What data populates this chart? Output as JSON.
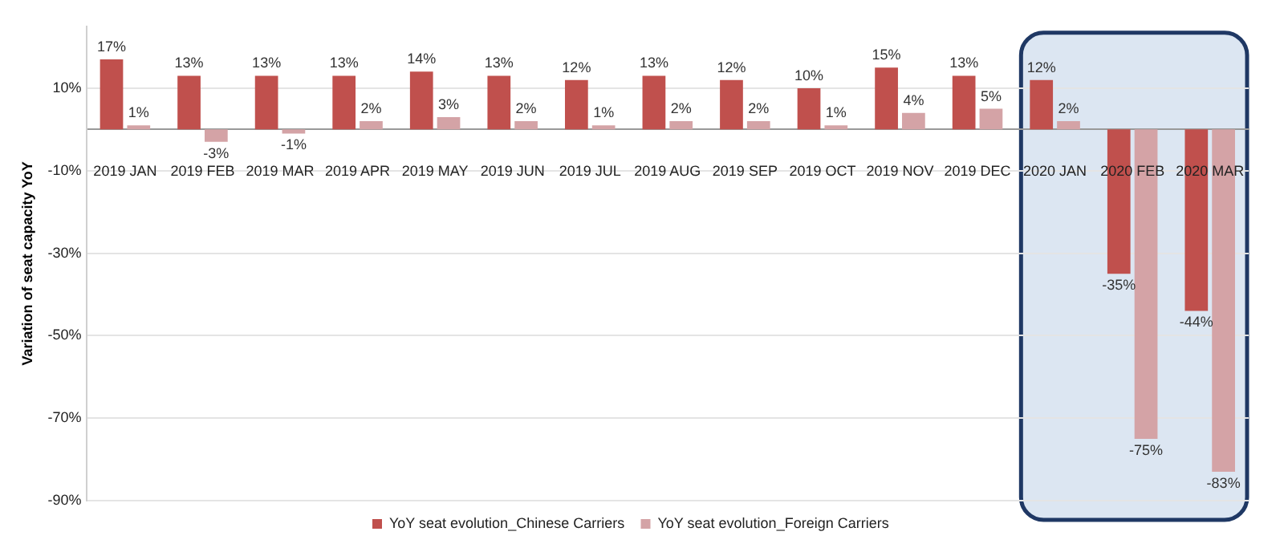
{
  "chart_data": {
    "type": "bar",
    "ylabel": "Variation of seat capacity YoY",
    "categories": [
      "2019 JAN",
      "2019 FEB",
      "2019 MAR",
      "2019 APR",
      "2019 MAY",
      "2019 JUN",
      "2019 JUL",
      "2019 AUG",
      "2019 SEP",
      "2019 OCT",
      "2019 NOV",
      "2019 DEC",
      "2020 JAN",
      "2020 FEB",
      "2020 MAR"
    ],
    "series": [
      {
        "name": "YoY seat evolution_Chinese Carriers",
        "color": "#c0504d",
        "values": [
          17,
          13,
          13,
          13,
          14,
          13,
          12,
          13,
          12,
          10,
          15,
          13,
          12,
          -35,
          -44
        ],
        "value_labels": [
          "17%",
          "13%",
          "13%",
          "13%",
          "14%",
          "13%",
          "12%",
          "13%",
          "12%",
          "10%",
          "15%",
          "13%",
          "12%",
          "-35%",
          "-44%"
        ]
      },
      {
        "name": "YoY seat evolution_Foreign Carriers",
        "color": "#d4a3a6",
        "values": [
          1,
          -3,
          -1,
          2,
          3,
          2,
          1,
          2,
          2,
          1,
          4,
          5,
          2,
          -75,
          -83
        ],
        "value_labels": [
          "1%",
          "-3%",
          "-1%",
          "2%",
          "3%",
          "2%",
          "1%",
          "2%",
          "2%",
          "1%",
          "4%",
          "5%",
          "2%",
          "-75%",
          "-83%"
        ]
      }
    ],
    "ylim": [
      -90,
      25
    ],
    "yticks": [
      {
        "value": 10,
        "label": "10%"
      },
      {
        "value": -10,
        "label": "-10%"
      },
      {
        "value": -30,
        "label": "-30%"
      },
      {
        "value": -50,
        "label": "-50%"
      },
      {
        "value": -70,
        "label": "-70%"
      },
      {
        "value": -90,
        "label": "-90%"
      }
    ],
    "grid": "y",
    "legend": "bottom",
    "bands": [
      {
        "axis": "x",
        "from": "2020 JAN",
        "to": "2020 MAR",
        "color": "#dce6f2"
      }
    ]
  }
}
